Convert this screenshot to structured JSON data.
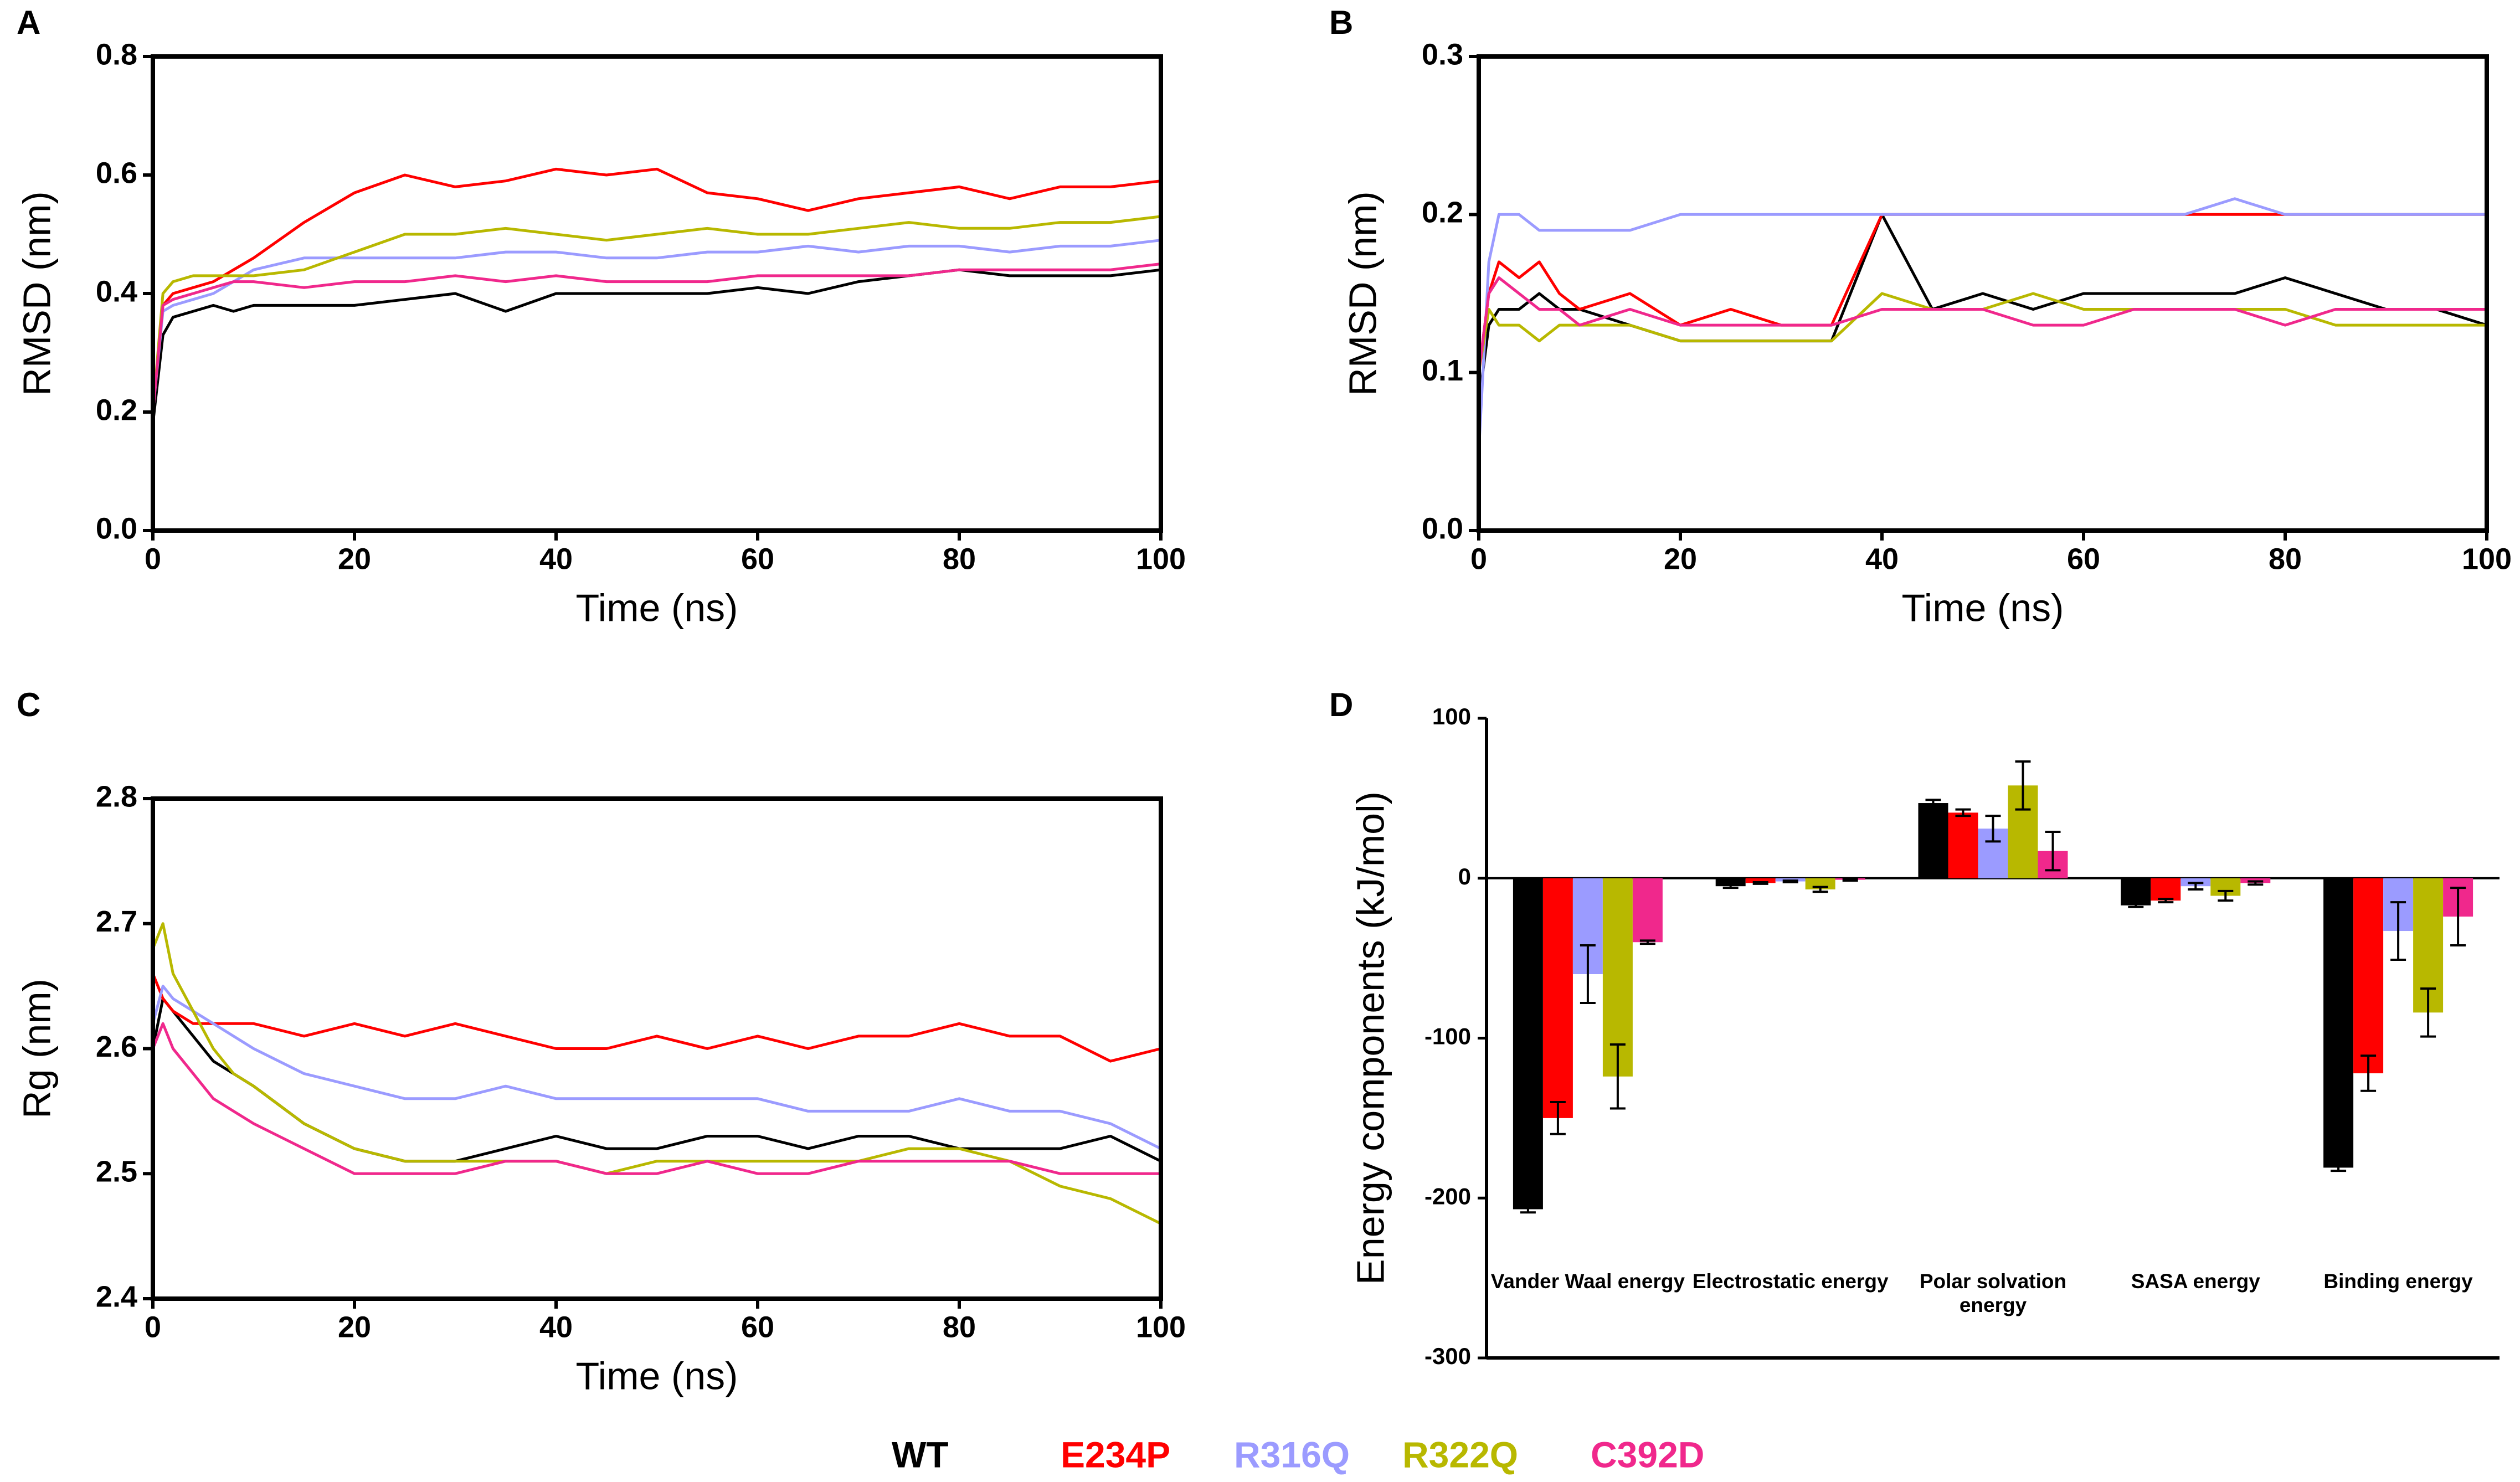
{
  "chart_data": [
    {
      "type": "line",
      "panel_label": "A",
      "x_label": "Time (ns)",
      "y_label": "RMSD (nm)",
      "x": [
        0,
        1,
        2,
        4,
        6,
        8,
        10,
        15,
        20,
        25,
        30,
        35,
        40,
        45,
        50,
        55,
        60,
        65,
        70,
        75,
        80,
        85,
        90,
        95,
        100
      ],
      "xlim": [
        0,
        100
      ],
      "xticks": [
        0,
        20,
        40,
        60,
        80,
        100
      ],
      "ylim": [
        0,
        0.8
      ],
      "yticks": [
        {
          "value": 0,
          "label": "0.0"
        },
        0.2,
        0.4,
        0.6,
        0.8
      ],
      "series": [
        {
          "name": "WT",
          "color": "#000000",
          "values": [
            0.18,
            0.33,
            0.36,
            0.37,
            0.38,
            0.37,
            0.38,
            0.38,
            0.38,
            0.39,
            0.4,
            0.37,
            0.4,
            0.4,
            0.4,
            0.4,
            0.41,
            0.4,
            0.42,
            0.43,
            0.44,
            0.43,
            0.43,
            0.43,
            0.44
          ]
        },
        {
          "name": "E234P",
          "color": "#ff0000",
          "values": [
            0.2,
            0.38,
            0.4,
            0.41,
            0.42,
            0.44,
            0.46,
            0.52,
            0.57,
            0.6,
            0.58,
            0.59,
            0.61,
            0.6,
            0.61,
            0.57,
            0.56,
            0.54,
            0.56,
            0.57,
            0.58,
            0.56,
            0.58,
            0.58,
            0.59
          ]
        },
        {
          "name": "R316Q",
          "color": "#9b9bff",
          "values": [
            0.2,
            0.37,
            0.38,
            0.39,
            0.4,
            0.42,
            0.44,
            0.46,
            0.46,
            0.46,
            0.46,
            0.47,
            0.47,
            0.46,
            0.46,
            0.47,
            0.47,
            0.48,
            0.47,
            0.48,
            0.48,
            0.47,
            0.48,
            0.48,
            0.49
          ]
        },
        {
          "name": "R322Q",
          "color": "#b8b800",
          "values": [
            0.2,
            0.4,
            0.42,
            0.43,
            0.43,
            0.43,
            0.43,
            0.44,
            0.47,
            0.5,
            0.5,
            0.51,
            0.5,
            0.49,
            0.5,
            0.51,
            0.5,
            0.5,
            0.51,
            0.52,
            0.51,
            0.51,
            0.52,
            0.52,
            0.53
          ]
        },
        {
          "name": "C392D",
          "color": "#f0288c",
          "values": [
            0.2,
            0.38,
            0.39,
            0.4,
            0.41,
            0.42,
            0.42,
            0.41,
            0.42,
            0.42,
            0.43,
            0.42,
            0.43,
            0.42,
            0.42,
            0.42,
            0.43,
            0.43,
            0.43,
            0.43,
            0.44,
            0.44,
            0.44,
            0.44,
            0.45
          ]
        }
      ]
    },
    {
      "type": "line",
      "panel_label": "B",
      "x_label": "Time (ns)",
      "y_label": "RMSD (nm)",
      "x": [
        0,
        1,
        2,
        4,
        6,
        8,
        10,
        15,
        20,
        25,
        30,
        35,
        40,
        45,
        50,
        55,
        60,
        65,
        70,
        75,
        80,
        85,
        90,
        95,
        100
      ],
      "xlim": [
        0,
        100
      ],
      "xticks": [
        0,
        20,
        40,
        60,
        80,
        100
      ],
      "ylim": [
        0,
        0.3
      ],
      "yticks": [
        {
          "value": 0,
          "label": "0.0"
        },
        0.1,
        0.2,
        0.3
      ],
      "series": [
        {
          "name": "WT",
          "color": "#000000",
          "values": [
            0.08,
            0.13,
            0.14,
            0.14,
            0.15,
            0.14,
            0.14,
            0.13,
            0.12,
            0.12,
            0.12,
            0.12,
            0.2,
            0.14,
            0.15,
            0.14,
            0.15,
            0.15,
            0.15,
            0.15,
            0.16,
            0.15,
            0.14,
            0.14,
            0.13
          ]
        },
        {
          "name": "E234P",
          "color": "#ff0000",
          "values": [
            0.1,
            0.15,
            0.17,
            0.16,
            0.17,
            0.15,
            0.14,
            0.15,
            0.13,
            0.14,
            0.13,
            0.13,
            0.2,
            0.2,
            0.2,
            0.2,
            0.2,
            0.2,
            0.2,
            0.2,
            0.2,
            0.2,
            0.2,
            0.2,
            0.2
          ]
        },
        {
          "name": "R316Q",
          "color": "#9b9bff",
          "values": [
            0.05,
            0.17,
            0.2,
            0.2,
            0.19,
            0.19,
            0.19,
            0.19,
            0.2,
            0.2,
            0.2,
            0.2,
            0.2,
            0.2,
            0.2,
            0.2,
            0.2,
            0.2,
            0.2,
            0.21,
            0.2,
            0.2,
            0.2,
            0.2,
            0.2
          ]
        },
        {
          "name": "R322Q",
          "color": "#b8b800",
          "values": [
            0.1,
            0.14,
            0.13,
            0.13,
            0.12,
            0.13,
            0.13,
            0.13,
            0.12,
            0.12,
            0.12,
            0.12,
            0.15,
            0.14,
            0.14,
            0.15,
            0.14,
            0.14,
            0.14,
            0.14,
            0.14,
            0.13,
            0.13,
            0.13,
            0.13
          ]
        },
        {
          "name": "C392D",
          "color": "#f0288c",
          "values": [
            0.1,
            0.15,
            0.16,
            0.15,
            0.14,
            0.14,
            0.13,
            0.14,
            0.13,
            0.13,
            0.13,
            0.13,
            0.14,
            0.14,
            0.14,
            0.13,
            0.13,
            0.14,
            0.14,
            0.14,
            0.13,
            0.14,
            0.14,
            0.14,
            0.14
          ]
        }
      ]
    },
    {
      "type": "line",
      "panel_label": "C",
      "x_label": "Time (ns)",
      "y_label": "Rg (nm)",
      "x": [
        0,
        1,
        2,
        4,
        6,
        8,
        10,
        15,
        20,
        25,
        30,
        35,
        40,
        45,
        50,
        55,
        60,
        65,
        70,
        75,
        80,
        85,
        90,
        95,
        100
      ],
      "xlim": [
        0,
        100
      ],
      "xticks": [
        0,
        20,
        40,
        60,
        80,
        100
      ],
      "ylim": [
        2.4,
        2.8
      ],
      "yticks": [
        2.4,
        2.5,
        2.6,
        2.7,
        2.8
      ],
      "series": [
        {
          "name": "WT",
          "color": "#000000",
          "values": [
            2.6,
            2.64,
            2.63,
            2.61,
            2.59,
            2.58,
            2.57,
            2.54,
            2.52,
            2.51,
            2.51,
            2.52,
            2.53,
            2.52,
            2.52,
            2.53,
            2.53,
            2.52,
            2.53,
            2.53,
            2.52,
            2.52,
            2.52,
            2.53,
            2.51
          ]
        },
        {
          "name": "E234P",
          "color": "#ff0000",
          "values": [
            2.66,
            2.64,
            2.63,
            2.62,
            2.62,
            2.62,
            2.62,
            2.61,
            2.62,
            2.61,
            2.62,
            2.61,
            2.6,
            2.6,
            2.61,
            2.6,
            2.61,
            2.6,
            2.61,
            2.61,
            2.62,
            2.61,
            2.61,
            2.59,
            2.6
          ]
        },
        {
          "name": "R316Q",
          "color": "#9b9bff",
          "values": [
            2.62,
            2.65,
            2.64,
            2.63,
            2.62,
            2.61,
            2.6,
            2.58,
            2.57,
            2.56,
            2.56,
            2.57,
            2.56,
            2.56,
            2.56,
            2.56,
            2.56,
            2.55,
            2.55,
            2.55,
            2.56,
            2.55,
            2.55,
            2.54,
            2.52
          ]
        },
        {
          "name": "R322Q",
          "color": "#b8b800",
          "values": [
            2.68,
            2.7,
            2.66,
            2.63,
            2.6,
            2.58,
            2.57,
            2.54,
            2.52,
            2.51,
            2.51,
            2.51,
            2.51,
            2.5,
            2.51,
            2.51,
            2.51,
            2.51,
            2.51,
            2.52,
            2.52,
            2.51,
            2.49,
            2.48,
            2.46
          ]
        },
        {
          "name": "C392D",
          "color": "#f0288c",
          "values": [
            2.6,
            2.62,
            2.6,
            2.58,
            2.56,
            2.55,
            2.54,
            2.52,
            2.5,
            2.5,
            2.5,
            2.51,
            2.51,
            2.5,
            2.5,
            2.51,
            2.5,
            2.5,
            2.51,
            2.51,
            2.51,
            2.51,
            2.5,
            2.5,
            2.5
          ]
        }
      ]
    },
    {
      "type": "bar",
      "panel_label": "D",
      "y_label": "Energy components (kJ/mol)",
      "categories": [
        "Vander Waal energy",
        "Electrostatic energy",
        "Polar solvation energy",
        "SASA energy",
        "Binding energy"
      ],
      "ylim": [
        -300,
        100
      ],
      "yticks": [
        100,
        0,
        -100,
        -200,
        -300
      ],
      "series": [
        {
          "name": "WT",
          "color": "#000000",
          "values": [
            -207,
            -5,
            47,
            -17,
            -181
          ],
          "errors": [
            2,
            1,
            2,
            1,
            2
          ]
        },
        {
          "name": "E234P",
          "color": "#ff0000",
          "values": [
            -150,
            -3,
            41,
            -14,
            -122
          ],
          "errors": [
            10,
            0.5,
            2,
            1,
            11
          ]
        },
        {
          "name": "R316Q",
          "color": "#9b9bff",
          "values": [
            -60,
            -2,
            31,
            -5,
            -33
          ],
          "errors": [
            18,
            0.5,
            8,
            2,
            18
          ]
        },
        {
          "name": "R322Q",
          "color": "#b8b800",
          "values": [
            -124,
            -7,
            58,
            -11,
            -84
          ],
          "errors": [
            20,
            1.5,
            15,
            3,
            15
          ]
        },
        {
          "name": "C392D",
          "color": "#f0288c",
          "values": [
            -40,
            -1,
            17,
            -3,
            -24
          ],
          "errors": [
            1,
            0.5,
            12,
            1,
            18
          ]
        }
      ]
    }
  ]
}
